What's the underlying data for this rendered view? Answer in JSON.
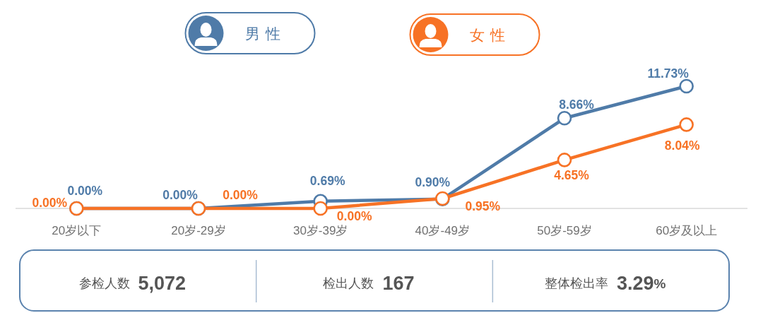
{
  "chart_data": {
    "type": "line",
    "categories": [
      "20岁以下",
      "20岁-29岁",
      "30岁-39岁",
      "40岁-49岁",
      "50岁-59岁",
      "60岁及以上"
    ],
    "series": [
      {
        "name": "男性",
        "color": "#4f7ba8",
        "values": [
          0,
          0,
          0.69,
          0.9,
          8.66,
          11.73
        ],
        "value_labels": [
          "0.00%",
          "0.00%",
          "0.69%",
          "0.90%",
          "8.66%",
          "11.73%"
        ]
      },
      {
        "name": "女性",
        "color": "#f77225",
        "values": [
          0,
          0,
          0,
          0.95,
          4.65,
          8.04
        ],
        "value_labels": [
          "0.00%",
          "0.00%",
          "0.00%",
          "0.95%",
          "4.65%",
          "8.04%"
        ]
      }
    ],
    "legend": "top",
    "marker": "circle",
    "line_style": "solid",
    "annotations": [
      "参检人数",
      "5,072",
      "检出人数",
      "167",
      "整体检出率",
      "3.29%"
    ]
  }
}
